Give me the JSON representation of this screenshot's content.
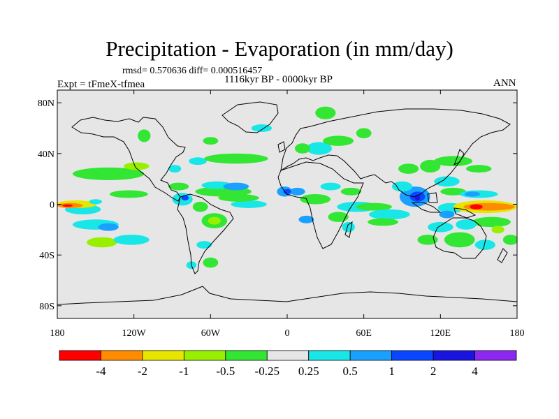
{
  "title": "Precipitation - Evaporation (in mm/day)",
  "stats": "rmsd= 0.570636 diff= 0.000516457",
  "subtitle": "1116kyr BP - 0000kyr BP",
  "experiment": "Expt = tFmeX-tfmea",
  "season": "ANN",
  "chart_data": {
    "type": "heatmap",
    "title": "Precipitation - Evaporation (in mm/day)",
    "projection": "cylindrical equidistant",
    "lon_range": [
      -180,
      180
    ],
    "lat_range": [
      -90,
      90
    ],
    "x_ticks": [
      {
        "value": -180,
        "label": "180"
      },
      {
        "value": -120,
        "label": "120W"
      },
      {
        "value": -60,
        "label": "60W"
      },
      {
        "value": 0,
        "label": "0"
      },
      {
        "value": 60,
        "label": "60E"
      },
      {
        "value": 120,
        "label": "120E"
      },
      {
        "value": 180,
        "label": "180"
      }
    ],
    "y_ticks": [
      {
        "value": 80,
        "label": "80N"
      },
      {
        "value": 40,
        "label": "40N"
      },
      {
        "value": 0,
        "label": "0"
      },
      {
        "value": -40,
        "label": "40S"
      },
      {
        "value": -80,
        "label": "80S"
      }
    ],
    "background_color": "#e6e6e6",
    "levels": [
      -4,
      -2,
      -1,
      -0.5,
      -0.25,
      0.25,
      0.5,
      1,
      2,
      4
    ],
    "level_labels": [
      "-4",
      "-2",
      "-1",
      "-0.5",
      "-0.25",
      "0.25",
      "0.5",
      "1",
      "2",
      "4"
    ],
    "colors": [
      "#ff0000",
      "#ff8c00",
      "#e6e600",
      "#98f000",
      "#33e633",
      "#e6e6e6",
      "#19e6e6",
      "#1aa0ff",
      "#0a46ff",
      "#1a14e0",
      "#8c28f0"
    ],
    "regions": [
      {
        "level": 5,
        "lon": -163,
        "lat": 5,
        "rlon": 17,
        "rlat": 5
      },
      {
        "level": 6,
        "lon": -160,
        "lat": -4,
        "rlon": 14,
        "rlat": 4
      },
      {
        "level": 2,
        "lon": -165,
        "lat": 0,
        "rlon": 16,
        "rlat": 3
      },
      {
        "level": 1,
        "lon": -170,
        "lat": -1,
        "rlon": 10,
        "rlat": 2
      },
      {
        "level": 0,
        "lon": -172,
        "lat": -1,
        "rlon": 4,
        "rlat": 1
      },
      {
        "level": 6,
        "lon": -150,
        "lat": 2,
        "rlon": 5,
        "rlat": 2
      },
      {
        "level": 4,
        "lon": -140,
        "lat": 24,
        "rlon": 28,
        "rlat": 5
      },
      {
        "level": 4,
        "lon": -124,
        "lat": 8,
        "rlon": 15,
        "rlat": 3
      },
      {
        "level": 3,
        "lon": -118,
        "lat": 30,
        "rlon": 10,
        "rlat": 3
      },
      {
        "level": 6,
        "lon": -150,
        "lat": -16,
        "rlon": 18,
        "rlat": 4
      },
      {
        "level": 7,
        "lon": -140,
        "lat": -18,
        "rlon": 8,
        "rlat": 3
      },
      {
        "level": 3,
        "lon": -145,
        "lat": -30,
        "rlon": 12,
        "rlat": 4
      },
      {
        "level": 6,
        "lon": -122,
        "lat": -28,
        "rlon": 14,
        "rlat": 4
      },
      {
        "level": 4,
        "lon": -57,
        "lat": -13,
        "rlon": 10,
        "rlat": 6
      },
      {
        "level": 3,
        "lon": -57,
        "lat": -13,
        "rlon": 5,
        "rlat": 3
      },
      {
        "level": 4,
        "lon": -68,
        "lat": -2,
        "rlon": 6,
        "rlat": 4
      },
      {
        "level": 4,
        "lon": -50,
        "lat": 10,
        "rlon": 22,
        "rlat": 4
      },
      {
        "level": 6,
        "lon": -55,
        "lat": 15,
        "rlon": 12,
        "rlat": 3
      },
      {
        "level": 7,
        "lon": -40,
        "lat": 14,
        "rlon": 10,
        "rlat": 3
      },
      {
        "level": 6,
        "lon": -30,
        "lat": 0,
        "rlon": 14,
        "rlat": 3
      },
      {
        "level": 4,
        "lon": -38,
        "lat": 5,
        "rlon": 16,
        "rlat": 3
      },
      {
        "level": 4,
        "lon": -85,
        "lat": 14,
        "rlon": 8,
        "rlat": 3
      },
      {
        "level": 6,
        "lon": -82,
        "lat": 4,
        "rlon": 8,
        "rlat": 5
      },
      {
        "level": 8,
        "lon": -80,
        "lat": 5,
        "rlon": 3,
        "rlat": 2
      },
      {
        "level": 6,
        "lon": -70,
        "lat": 34,
        "rlon": 7,
        "rlat": 3
      },
      {
        "level": 4,
        "lon": -40,
        "lat": 36,
        "rlon": 25,
        "rlat": 4
      },
      {
        "level": 6,
        "lon": -88,
        "lat": 28,
        "rlon": 5,
        "rlat": 3
      },
      {
        "level": 4,
        "lon": -112,
        "lat": 54,
        "rlon": 5,
        "rlat": 5
      },
      {
        "level": 6,
        "lon": -65,
        "lat": -32,
        "rlon": 6,
        "rlat": 3
      },
      {
        "level": 4,
        "lon": -60,
        "lat": -46,
        "rlon": 6,
        "rlat": 4
      },
      {
        "level": 6,
        "lon": -75,
        "lat": -48,
        "rlon": 4,
        "rlat": 3
      },
      {
        "level": 6,
        "lon": 25,
        "lat": 44,
        "rlon": 10,
        "rlat": 5
      },
      {
        "level": 4,
        "lon": 12,
        "lat": 44,
        "rlon": 6,
        "rlat": 4
      },
      {
        "level": 4,
        "lon": 40,
        "lat": 50,
        "rlon": 12,
        "rlat": 4
      },
      {
        "level": 4,
        "lon": 30,
        "lat": 72,
        "rlon": 8,
        "rlat": 5
      },
      {
        "level": 4,
        "lon": 60,
        "lat": 56,
        "rlon": 6,
        "rlat": 4
      },
      {
        "level": 7,
        "lon": -2,
        "lat": 10,
        "rlon": 6,
        "rlat": 4
      },
      {
        "level": 7,
        "lon": 8,
        "lat": 10,
        "rlon": 6,
        "rlat": 3
      },
      {
        "level": 8,
        "lon": 0,
        "lat": 10,
        "rlon": 3,
        "rlat": 2
      },
      {
        "level": 4,
        "lon": 22,
        "lat": 4,
        "rlon": 12,
        "rlat": 4
      },
      {
        "level": 6,
        "lon": 34,
        "lat": 14,
        "rlon": 8,
        "rlat": 3
      },
      {
        "level": 4,
        "lon": 50,
        "lat": 10,
        "rlon": 8,
        "rlat": 3
      },
      {
        "level": 4,
        "lon": 40,
        "lat": -10,
        "rlon": 8,
        "rlat": 4
      },
      {
        "level": 7,
        "lon": 15,
        "lat": -12,
        "rlon": 6,
        "rlat": 3
      },
      {
        "level": 6,
        "lon": 48,
        "lat": -18,
        "rlon": 5,
        "rlat": 4
      },
      {
        "level": 6,
        "lon": 55,
        "lat": -2,
        "rlon": 16,
        "rlat": 4
      },
      {
        "level": 4,
        "lon": 68,
        "lat": -2,
        "rlon": 14,
        "rlat": 3
      },
      {
        "level": 6,
        "lon": 80,
        "lat": -8,
        "rlon": 16,
        "rlat": 4
      },
      {
        "level": 4,
        "lon": 75,
        "lat": -14,
        "rlon": 12,
        "rlat": 3
      },
      {
        "level": 7,
        "lon": 100,
        "lat": 6,
        "rlon": 12,
        "rlat": 8
      },
      {
        "level": 8,
        "lon": 102,
        "lat": 6,
        "rlon": 6,
        "rlat": 4
      },
      {
        "level": 9,
        "lon": 102,
        "lat": 5,
        "rlon": 2,
        "rlat": 2
      },
      {
        "level": 6,
        "lon": 90,
        "lat": 14,
        "rlon": 8,
        "rlat": 4
      },
      {
        "level": 4,
        "lon": 95,
        "lat": 28,
        "rlon": 8,
        "rlat": 4
      },
      {
        "level": 4,
        "lon": 112,
        "lat": 30,
        "rlon": 8,
        "rlat": 5
      },
      {
        "level": 4,
        "lon": 130,
        "lat": 34,
        "rlon": 15,
        "rlat": 4
      },
      {
        "level": 6,
        "lon": 125,
        "lat": 18,
        "rlon": 10,
        "rlat": 4
      },
      {
        "level": 4,
        "lon": 130,
        "lat": 10,
        "rlon": 10,
        "rlat": 3
      },
      {
        "level": 6,
        "lon": 128,
        "lat": -3,
        "rlon": 10,
        "rlat": 4
      },
      {
        "level": 7,
        "lon": 125,
        "lat": -8,
        "rlon": 6,
        "rlat": 3
      },
      {
        "level": 2,
        "lon": 155,
        "lat": -2,
        "rlon": 25,
        "rlat": 5
      },
      {
        "level": 1,
        "lon": 158,
        "lat": -2,
        "rlon": 20,
        "rlat": 3
      },
      {
        "level": 0,
        "lon": 148,
        "lat": -2,
        "rlon": 5,
        "rlat": 2
      },
      {
        "level": 6,
        "lon": 150,
        "lat": 8,
        "rlon": 15,
        "rlat": 3
      },
      {
        "level": 7,
        "lon": 145,
        "lat": 8,
        "rlon": 6,
        "rlat": 2
      },
      {
        "level": 4,
        "lon": 160,
        "lat": -14,
        "rlon": 15,
        "rlat": 4
      },
      {
        "level": 6,
        "lon": 140,
        "lat": -16,
        "rlon": 8,
        "rlat": 4
      },
      {
        "level": 4,
        "lon": 135,
        "lat": -28,
        "rlon": 12,
        "rlat": 6
      },
      {
        "level": 6,
        "lon": 120,
        "lat": -18,
        "rlon": 10,
        "rlat": 4
      },
      {
        "level": 4,
        "lon": 110,
        "lat": -28,
        "rlon": 8,
        "rlat": 4
      },
      {
        "level": 6,
        "lon": 155,
        "lat": -32,
        "rlon": 8,
        "rlat": 4
      },
      {
        "level": 4,
        "lon": 175,
        "lat": -28,
        "rlon": 6,
        "rlat": 4
      },
      {
        "level": 3,
        "lon": 165,
        "lat": -20,
        "rlon": 5,
        "rlat": 3
      },
      {
        "level": 4,
        "lon": 150,
        "lat": 28,
        "rlon": 10,
        "rlat": 3
      },
      {
        "level": 4,
        "lon": -60,
        "lat": 50,
        "rlon": 6,
        "rlat": 3
      },
      {
        "level": 6,
        "lon": -20,
        "lat": 60,
        "rlon": 8,
        "rlat": 3
      }
    ]
  }
}
